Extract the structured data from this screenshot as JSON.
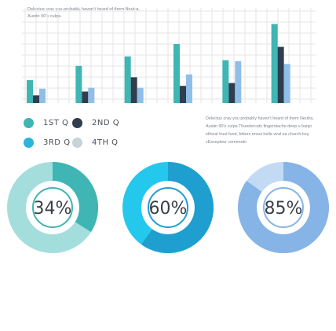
{
  "caption": "Delectus cray you probably haven't heard of them Neutra, Austin 90's culpa.",
  "legend_text": "Delectus cray you probably haven't heard of them Neutra, Austin 90's culpa Thundercats fingerstache deep v banjo ethical trust fund, bitters ennui hella viral ea church-key. vExcepteur commodo",
  "colors": {
    "q1": "#3fb5b4",
    "q2": "#2f3d4f",
    "q3": "#29b6d8",
    "q4": "#c6d4d9",
    "q3_light": "#8fbfe8",
    "grid": "#e6e6e6"
  },
  "chart_data": [
    {
      "type": "bar",
      "title": "",
      "xlabel": "",
      "ylabel": "",
      "ylim": [
        0,
        100
      ],
      "grid": true,
      "categories": [
        "",
        "",
        "",
        "",
        "",
        ""
      ],
      "series": [
        {
          "name": "1ST Q",
          "values": [
            24,
            39,
            49,
            62,
            45,
            83
          ]
        },
        {
          "name": "2ND Q",
          "values": [
            8,
            12,
            27,
            18,
            21,
            59
          ]
        },
        {
          "name": "3RD Q",
          "values": [
            15,
            16,
            16,
            30,
            44,
            41
          ]
        }
      ]
    },
    {
      "type": "pie",
      "donuts": [
        {
          "label": "34%",
          "value": 34,
          "color": "#3fb5b4",
          "track": "#a3dedd"
        },
        {
          "label": "60%",
          "value": 60,
          "color": "#1f9fcf",
          "track": "#24c8ec"
        },
        {
          "label": "85%",
          "value": 85,
          "color": "#86b4e6",
          "track": "#c2daf4"
        }
      ]
    }
  ],
  "legend": [
    {
      "label": "1ST Q",
      "color": "#3fb5b4"
    },
    {
      "label": "2ND Q",
      "color": "#2f3d4f"
    },
    {
      "label": "3RD Q",
      "color": "#29b6d8"
    },
    {
      "label": "4TH Q",
      "color": "#c6d4d9"
    }
  ]
}
